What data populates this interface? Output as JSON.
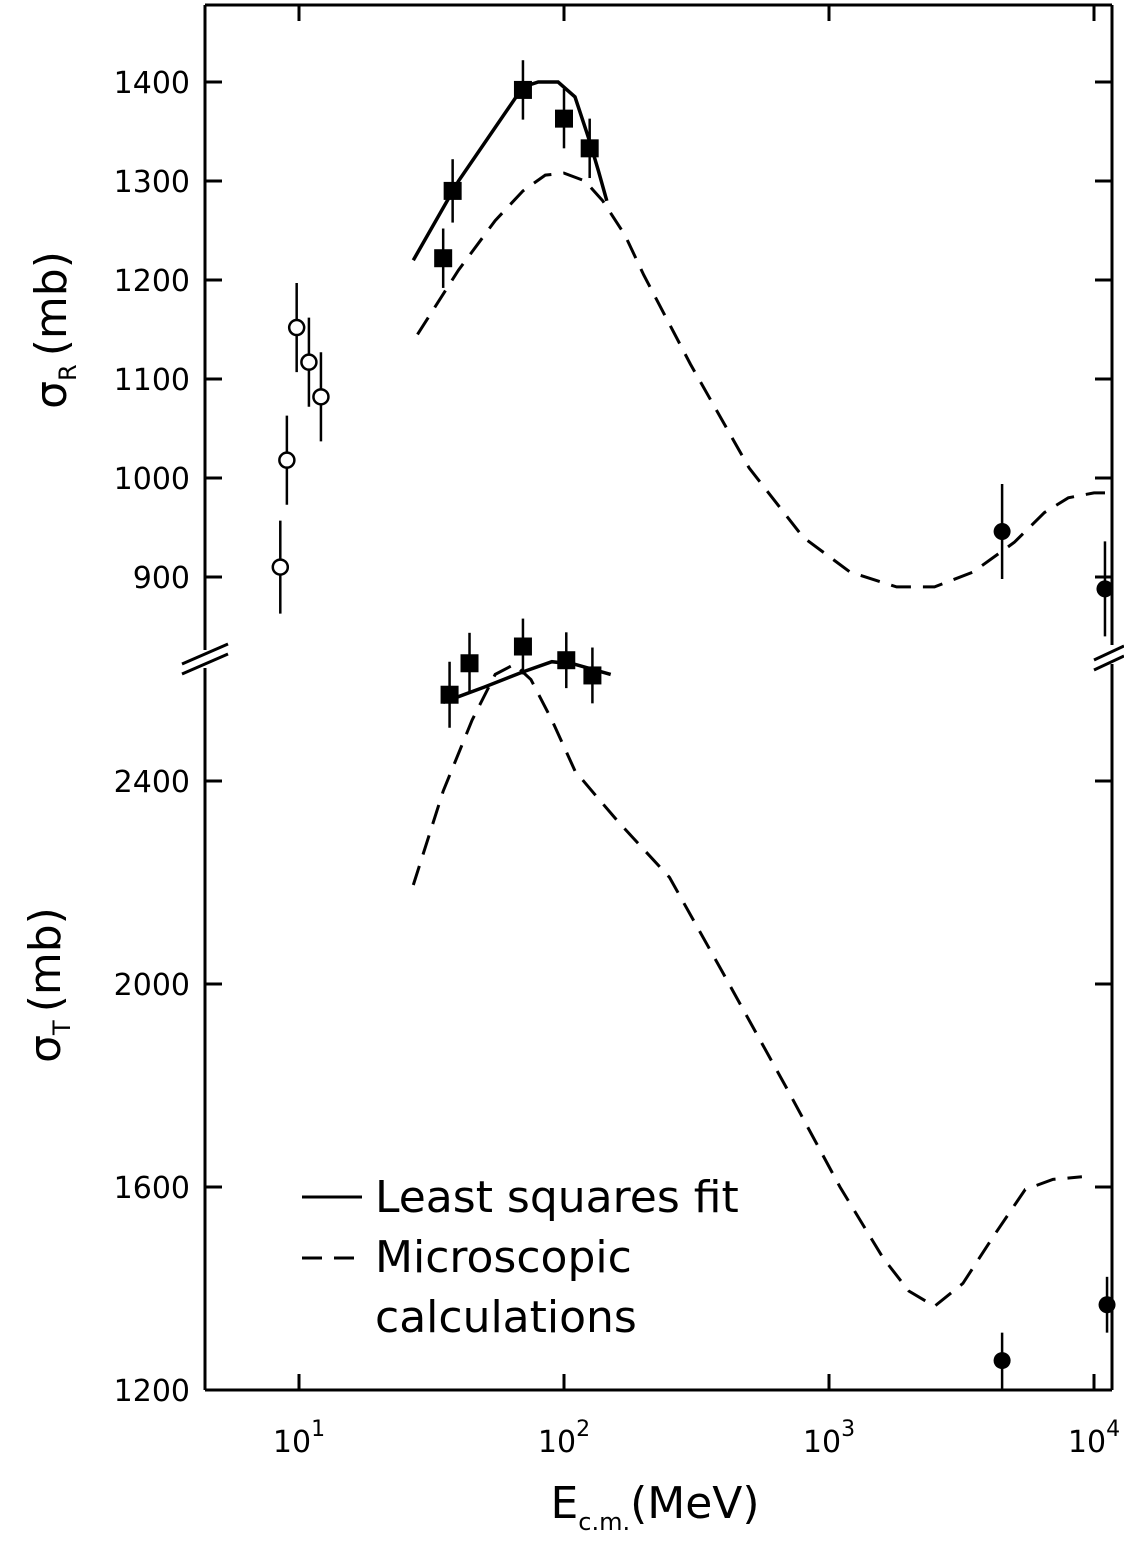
{
  "chart_data": {
    "type": "scatter",
    "x_axis": {
      "label_main": "E",
      "label_sub": "c.m.",
      "label_unit": "(MeV)",
      "scale": "log",
      "range": [
        4,
        12000
      ],
      "ticks": [
        {
          "value": 10,
          "base": "10",
          "exp": "1"
        },
        {
          "value": 100,
          "base": "10",
          "exp": "2"
        },
        {
          "value": 1000,
          "base": "10",
          "exp": "3"
        },
        {
          "value": 10000,
          "base": "10",
          "exp": "4"
        }
      ]
    },
    "panels": [
      {
        "id": "sigma_R",
        "ylabel_symbol": "σ",
        "ylabel_sub": "R",
        "ylabel_unit": "(mb)",
        "ylim": [
          800,
          1480
        ],
        "y_ticks": [
          900,
          1000,
          1100,
          1200,
          1300,
          1400
        ],
        "tick_labels": [
          "900",
          "1000",
          "1100",
          "1200",
          "1300",
          "1400"
        ],
        "least_squares_fit": [
          [
            27,
            1220
          ],
          [
            40,
            1300
          ],
          [
            70,
            1395
          ],
          [
            80,
            1400
          ],
          [
            95,
            1400
          ],
          [
            110,
            1385
          ],
          [
            125,
            1340
          ],
          [
            135,
            1310
          ],
          [
            145,
            1280
          ]
        ],
        "microscopic": [
          [
            28,
            1145
          ],
          [
            40,
            1210
          ],
          [
            55,
            1260
          ],
          [
            70,
            1290
          ],
          [
            85,
            1306
          ],
          [
            100,
            1308
          ],
          [
            120,
            1300
          ],
          [
            140,
            1280
          ],
          [
            170,
            1245
          ],
          [
            200,
            1205
          ],
          [
            300,
            1115
          ],
          [
            500,
            1010
          ],
          [
            800,
            940
          ],
          [
            1200,
            905
          ],
          [
            1800,
            890
          ],
          [
            2500,
            890
          ],
          [
            3500,
            905
          ],
          [
            5000,
            935
          ],
          [
            6500,
            965
          ],
          [
            8000,
            980
          ],
          [
            10000,
            985
          ],
          [
            11000,
            985
          ]
        ],
        "points": [
          {
            "x": 8.5,
            "y": 910,
            "err": 47,
            "marker": "open-circle"
          },
          {
            "x": 9.0,
            "y": 1018,
            "err": 45,
            "marker": "open-circle"
          },
          {
            "x": 9.8,
            "y": 1152,
            "err": 45,
            "marker": "open-circle"
          },
          {
            "x": 10.9,
            "y": 1117,
            "err": 45,
            "marker": "open-circle"
          },
          {
            "x": 12.1,
            "y": 1082,
            "err": 45,
            "marker": "open-circle"
          },
          {
            "x": 35,
            "y": 1222,
            "err": 30,
            "marker": "filled-square"
          },
          {
            "x": 38,
            "y": 1290,
            "err": 32,
            "marker": "filled-square"
          },
          {
            "x": 70,
            "y": 1392,
            "err": 30,
            "marker": "filled-square"
          },
          {
            "x": 100,
            "y": 1363,
            "err": 30,
            "marker": "filled-square"
          },
          {
            "x": 125,
            "y": 1333,
            "err": 30,
            "marker": "filled-square"
          },
          {
            "x": 4500,
            "y": 946,
            "err": 48,
            "marker": "filled-circle"
          },
          {
            "x": 11000,
            "y": 888,
            "err": 48,
            "marker": "filled-circle"
          }
        ]
      },
      {
        "id": "sigma_T",
        "ylabel_symbol": "σ",
        "ylabel_sub": "T",
        "ylabel_unit": "(mb)",
        "ylim": [
          1200,
          2790
        ],
        "y_ticks": [
          1200,
          1600,
          2000,
          2400
        ],
        "tick_labels": [
          "1200",
          "1600",
          "2000",
          "2400"
        ],
        "least_squares_fit": [
          [
            35,
            2555
          ],
          [
            50,
            2585
          ],
          [
            70,
            2615
          ],
          [
            90,
            2635
          ],
          [
            110,
            2630
          ],
          [
            150,
            2610
          ]
        ],
        "microscopic": [
          [
            27,
            2195
          ],
          [
            35,
            2380
          ],
          [
            45,
            2520
          ],
          [
            55,
            2610
          ],
          [
            65,
            2630
          ],
          [
            75,
            2600
          ],
          [
            90,
            2520
          ],
          [
            110,
            2420
          ],
          [
            130,
            2375
          ],
          [
            160,
            2320
          ],
          [
            250,
            2210
          ],
          [
            400,
            2020
          ],
          [
            700,
            1790
          ],
          [
            1100,
            1600
          ],
          [
            1600,
            1460
          ],
          [
            2000,
            1395
          ],
          [
            2500,
            1365
          ],
          [
            3200,
            1410
          ],
          [
            4200,
            1505
          ],
          [
            5500,
            1595
          ],
          [
            7000,
            1615
          ],
          [
            9000,
            1620
          ]
        ],
        "points": [
          {
            "x": 37,
            "y": 2570,
            "err": 65,
            "marker": "filled-square"
          },
          {
            "x": 44,
            "y": 2632,
            "err": 60,
            "marker": "filled-square"
          },
          {
            "x": 70,
            "y": 2665,
            "err": 55,
            "marker": "filled-square"
          },
          {
            "x": 102,
            "y": 2638,
            "err": 55,
            "marker": "filled-square"
          },
          {
            "x": 128,
            "y": 2608,
            "err": 55,
            "marker": "filled-square"
          },
          {
            "x": 4500,
            "y": 1258,
            "err": 55,
            "marker": "filled-circle"
          },
          {
            "x": 11200,
            "y": 1368,
            "err": 55,
            "marker": "filled-circle"
          }
        ]
      }
    ],
    "legend": {
      "placement": "lower-left",
      "entries": [
        {
          "style": "solid",
          "label": "Least squares fit"
        },
        {
          "style": "dashed",
          "label": "Microscopic",
          "label_line2": "calculations"
        }
      ]
    }
  }
}
